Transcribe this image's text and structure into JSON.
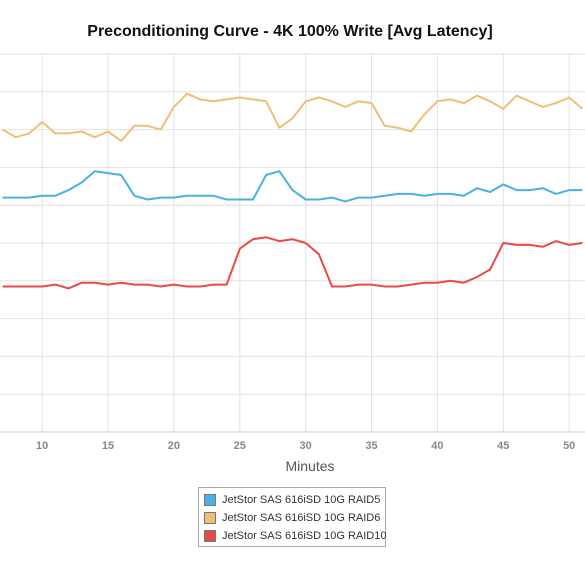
{
  "chart_data": {
    "type": "line",
    "title": "Preconditioning Curve - 4K 100% Write [Avg Latency]",
    "xlabel": "Minutes",
    "ylabel": "",
    "xlim": [
      6.8,
      51.2
    ],
    "ylim": [
      0,
      100
    ],
    "x_ticks": [
      10,
      15,
      20,
      25,
      30,
      35,
      40,
      45,
      50
    ],
    "x_tick_labels": [
      "10",
      "15",
      "20",
      "25",
      "30",
      "35",
      "40",
      "45",
      "50"
    ],
    "y_gridlines": [
      10,
      20,
      30,
      40,
      50,
      60,
      70,
      80,
      90,
      100
    ],
    "grid": true,
    "legend_position": "bottom",
    "x": [
      7,
      8,
      9,
      10,
      11,
      12,
      13,
      14,
      15,
      16,
      17,
      18,
      19,
      20,
      21,
      22,
      23,
      24,
      25,
      26,
      27,
      28,
      29,
      30,
      31,
      32,
      33,
      34,
      35,
      36,
      37,
      38,
      39,
      40,
      41,
      42,
      43,
      44,
      45,
      46,
      47,
      48,
      49,
      50,
      51
    ],
    "series": [
      {
        "name": "JetStor SAS 616iSD 10G RAID5",
        "color": "#4ab1e2",
        "values": [
          62,
          62,
          62,
          62.5,
          62.5,
          64,
          66,
          69,
          68.5,
          68,
          62.5,
          61.5,
          62,
          62,
          62.5,
          62.5,
          62.5,
          61.5,
          61.5,
          61.5,
          68,
          69,
          64,
          61.5,
          61.5,
          62,
          61,
          62,
          62,
          62.5,
          63,
          63,
          62.5,
          63,
          63,
          62.5,
          64.5,
          63.5,
          65.5,
          64,
          64,
          64.5,
          63,
          64,
          64
        ]
      },
      {
        "name": "JetStor SAS 616iSD 10G RAID6",
        "color": "#eec077",
        "values": [
          80,
          78,
          79,
          82,
          79,
          79,
          79.5,
          78,
          79.5,
          77,
          81,
          81,
          80,
          86,
          89.5,
          88,
          87.5,
          88,
          88.5,
          88,
          87.5,
          80.5,
          83,
          87.5,
          88.5,
          87.5,
          86,
          87.5,
          87,
          81,
          80.5,
          79.5,
          84,
          87.5,
          88,
          87,
          89,
          87.5,
          85.5,
          89,
          87.5,
          86,
          87,
          88.5,
          85.5
        ]
      },
      {
        "name": "JetStor SAS 616iSD 10G RAID10",
        "color": "#e84a48",
        "values": [
          38.5,
          38.5,
          38.5,
          38.5,
          39,
          38,
          39.5,
          39.5,
          39,
          39.5,
          39,
          39,
          38.5,
          39,
          38.5,
          38.5,
          39,
          39,
          48.5,
          51,
          51.5,
          50.5,
          51,
          50,
          47,
          38.5,
          38.5,
          39,
          39,
          38.5,
          38.5,
          39,
          39.5,
          39.5,
          40,
          39.5,
          41,
          43,
          50,
          49.5,
          49.5,
          49,
          50.5,
          49.5,
          50
        ]
      }
    ]
  }
}
